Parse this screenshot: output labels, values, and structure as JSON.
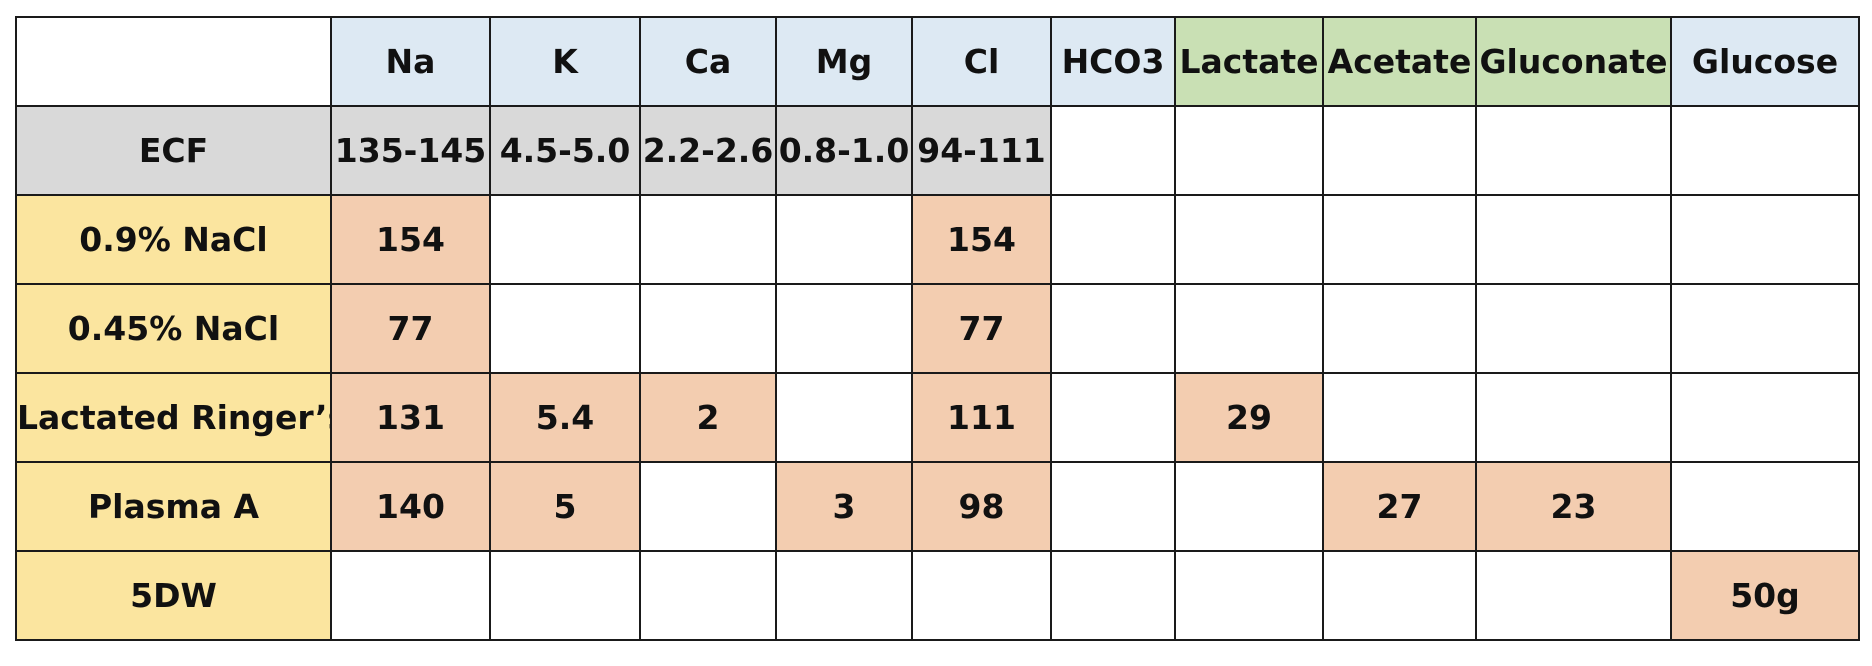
{
  "columns": [
    "",
    "Na",
    "K",
    "Ca",
    "Mg",
    "Cl",
    "HCO3",
    "Lactate",
    "Acetate",
    "Gluconate",
    "Glucose"
  ],
  "rows": [
    {
      "label": "ECF",
      "cells": [
        "135-145",
        "4.5-5.0",
        "2.2-2.6",
        "0.8-1.0",
        "94-111",
        "",
        "",
        "",
        "",
        ""
      ]
    },
    {
      "label": "0.9% NaCl",
      "cells": [
        "154",
        "",
        "",
        "",
        "154",
        "",
        "",
        "",
        "",
        ""
      ]
    },
    {
      "label": "0.45% NaCl",
      "cells": [
        "77",
        "",
        "",
        "",
        "77",
        "",
        "",
        "",
        "",
        ""
      ]
    },
    {
      "label": "Lactated Ringer’s",
      "cells": [
        "131",
        "5.4",
        "2",
        "",
        "111",
        "",
        "29",
        "",
        "",
        ""
      ]
    },
    {
      "label": "Plasma A",
      "cells": [
        "140",
        "5",
        "",
        "3",
        "98",
        "",
        "",
        "27",
        "23",
        ""
      ]
    },
    {
      "label": "5DW",
      "cells": [
        "",
        "",
        "",
        "",
        "",
        "",
        "",
        "",
        "",
        "50g"
      ]
    }
  ]
}
